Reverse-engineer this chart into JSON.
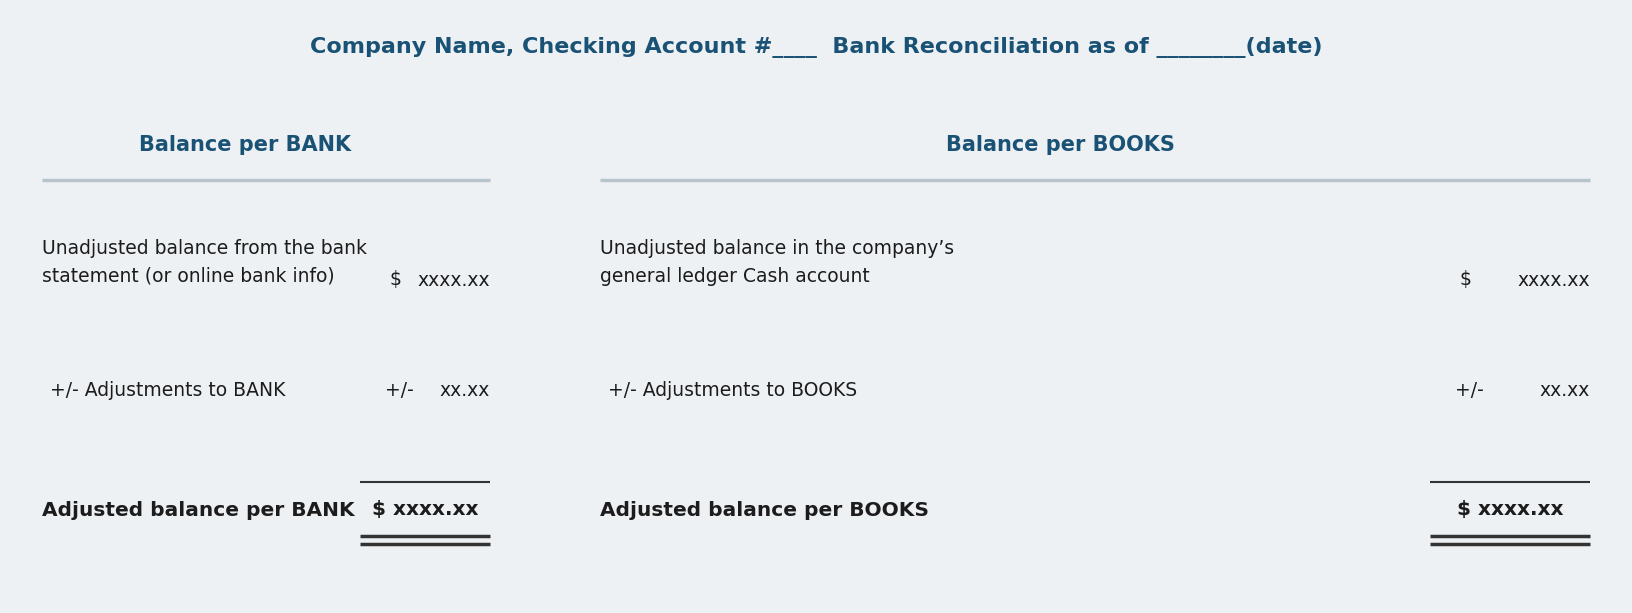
{
  "title": "Company Name, Checking Account #____  Bank Reconciliation as of ________(date)",
  "title_color": "#1a5276",
  "title_fontsize": 16,
  "bg_color": "#eef1f4",
  "text_color": "#1c1c1c",
  "header_color": "#1a5276",
  "separator_color": "#b8c4cc",
  "left_header": "Balance per BANK",
  "right_header": "Balance per BOOKS",
  "left_label1": "Unadjusted balance from the bank\nstatement (or online bank info)",
  "left_sym1": "$",
  "left_val1": "xxxx.xx",
  "left_label2": "+/- Adjustments to BANK",
  "left_sym2": "+/-",
  "left_val2": "xx.xx",
  "left_label3": "Adjusted balance per BANK",
  "left_val3": "$ xxxx.xx",
  "right_label1": "Unadjusted balance in the company’s\ngeneral ledger Cash account",
  "right_sym1": "$",
  "right_val1": "xxxx.xx",
  "right_label2": "+/- Adjustments to BOOKS",
  "right_sym2": "+/-",
  "right_val2": "xx.xx",
  "right_label3": "Adjusted balance per BOOKS",
  "right_val3": "$ xxxx.xx",
  "fs_body": 13.5,
  "fs_header": 15,
  "fs_bold": 14.5
}
